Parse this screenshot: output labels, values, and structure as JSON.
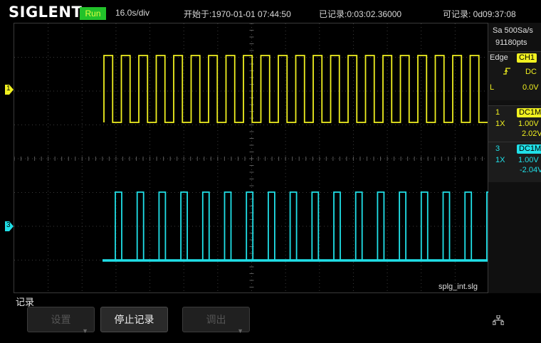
{
  "header": {
    "brand": "SIGLENT",
    "status": "Run",
    "timebase": "16.0s/div",
    "start": "开始于:1970-01-01 07:44:50",
    "recorded": "已记录:0:03:02.36000",
    "available": "可记录: 0d09:37:08"
  },
  "acq": {
    "sample_rate": "Sa 500Sa/s",
    "points": "91180pts"
  },
  "trigger": {
    "type": "Edge",
    "source": "CH1",
    "coupling": "DC",
    "level_label": "L",
    "level": "0.0V"
  },
  "channels": [
    {
      "num": "1",
      "coupling": "DC1M",
      "probe": "1X",
      "scale": "1.00V",
      "offset": "2.02V",
      "color": "#f0f020"
    },
    {
      "num": "3",
      "coupling": "DC1M",
      "probe": "1X",
      "scale": "1.00V",
      "offset": "-2.04V",
      "color": "#20e0e8"
    }
  ],
  "markers": {
    "ch1": "1",
    "ch3": "3"
  },
  "file": "splg_int.slg",
  "menu": {
    "title": "记录",
    "buttons": [
      {
        "label": "设置",
        "enabled": false
      },
      {
        "label": "停止记录",
        "enabled": true
      },
      {
        "label": "调出",
        "enabled": false
      }
    ]
  },
  "icons": {
    "network": "network-icon",
    "trigger_edge": "rising-edge-icon"
  }
}
